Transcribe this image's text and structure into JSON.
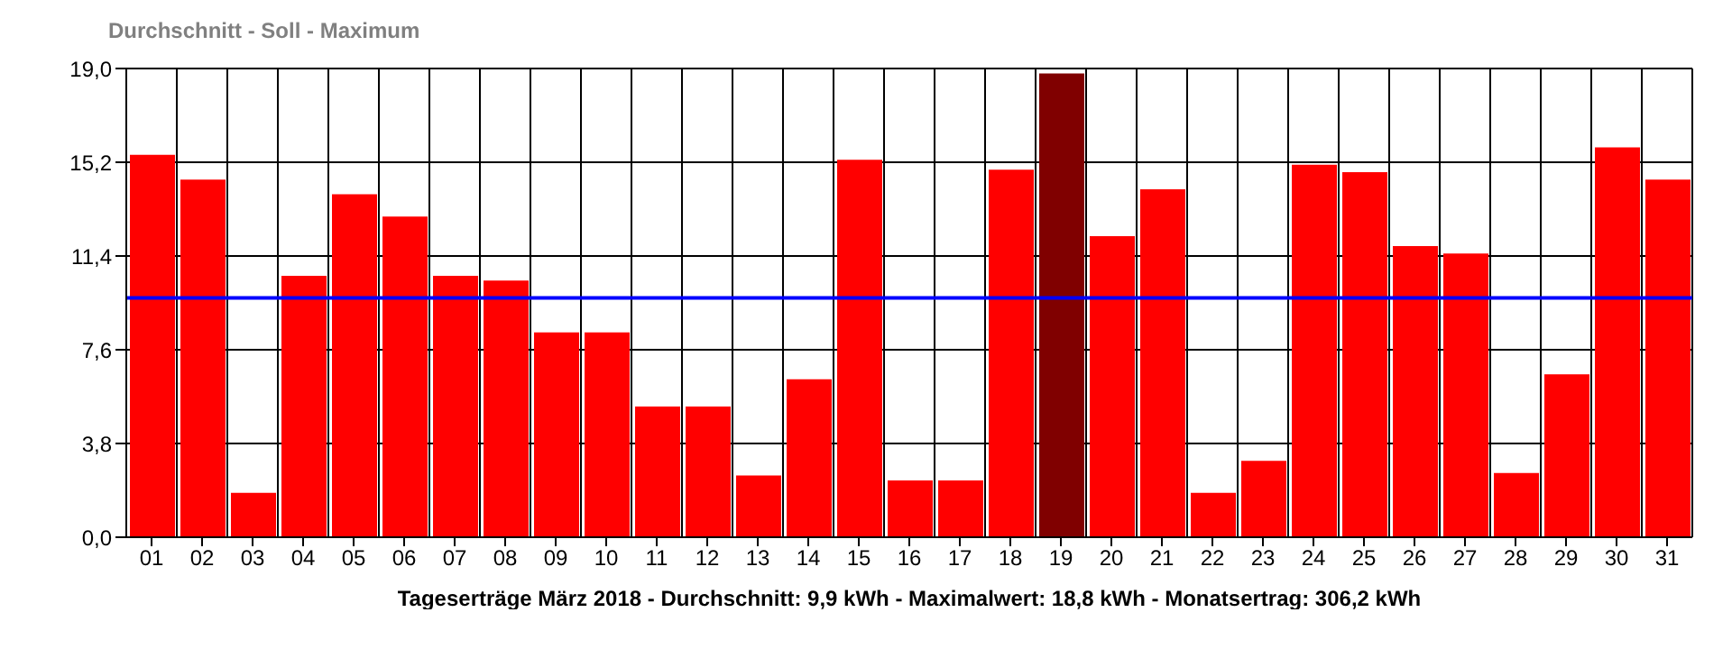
{
  "chart_data": {
    "type": "bar",
    "title": "Durchschnitt - Soll - Maximum",
    "xlabel": "Tageserträge März 2018 - Durchschnitt: 9,9 kWh - Maximalwert: 18,8 kWh - Monatsertrag: 306,2 kWh",
    "categories": [
      "01",
      "02",
      "03",
      "04",
      "05",
      "06",
      "07",
      "08",
      "09",
      "10",
      "11",
      "12",
      "13",
      "14",
      "15",
      "16",
      "17",
      "18",
      "19",
      "20",
      "21",
      "22",
      "23",
      "24",
      "25",
      "26",
      "27",
      "28",
      "29",
      "30",
      "31"
    ],
    "values": [
      15.5,
      14.5,
      1.8,
      10.6,
      13.9,
      13.0,
      10.6,
      10.4,
      8.3,
      8.3,
      5.3,
      5.3,
      2.5,
      6.4,
      15.3,
      2.3,
      2.3,
      14.9,
      18.8,
      12.2,
      14.1,
      1.8,
      3.1,
      15.1,
      14.8,
      11.8,
      11.5,
      2.6,
      6.6,
      15.8,
      14.5
    ],
    "colors": [
      "#ff0000",
      "#ff0000",
      "#ff0000",
      "#ff0000",
      "#ff0000",
      "#ff0000",
      "#ff0000",
      "#ff0000",
      "#ff0000",
      "#ff0000",
      "#ff0000",
      "#ff0000",
      "#ff0000",
      "#ff0000",
      "#ff0000",
      "#ff0000",
      "#ff0000",
      "#ff0000",
      "#800000",
      "#ff0000",
      "#ff0000",
      "#ff0000",
      "#ff0000",
      "#ff0000",
      "#ff0000",
      "#ff0000",
      "#ff0000",
      "#ff0000",
      "#ff0000",
      "#ff0000",
      "#ff0000"
    ],
    "ylim": [
      0,
      19
    ],
    "yticks": [
      {
        "value": 0,
        "label": "0,0"
      },
      {
        "value": 3.8,
        "label": "3,8"
      },
      {
        "value": 7.6,
        "label": "7,6"
      },
      {
        "value": 11.4,
        "label": "11,4"
      },
      {
        "value": 15.2,
        "label": "15,2"
      },
      {
        "value": 19,
        "label": "19,0"
      }
    ],
    "ref_lines": [
      {
        "axis": "y",
        "value": 9.7,
        "color": "#0000ff"
      }
    ],
    "grid": true
  }
}
